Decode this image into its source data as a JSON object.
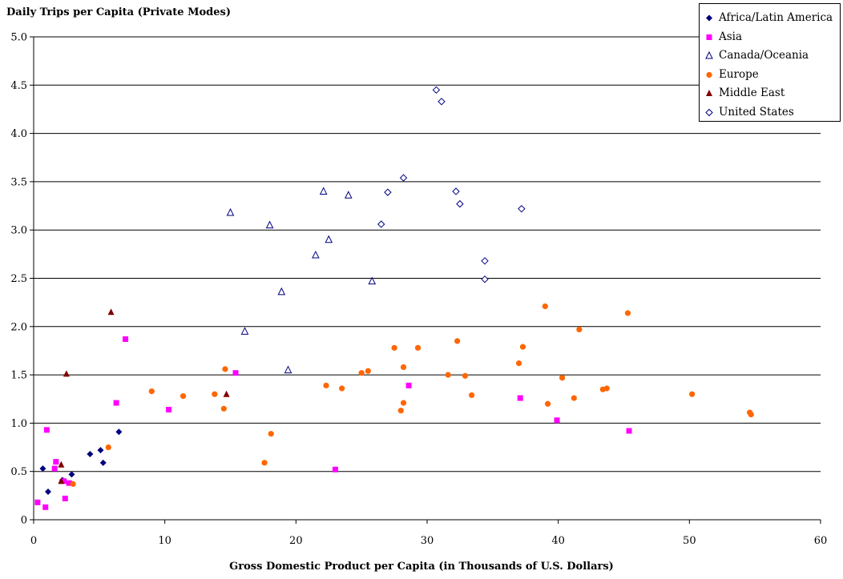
{
  "chart_data": {
    "type": "scatter",
    "ylabel": "Daily Trips per Capita (Private Modes)",
    "xlabel": "Gross Domestic Product per Capita (in Thousands of U.S. Dollars)",
    "xlim": [
      0,
      60
    ],
    "ylim": [
      0,
      5
    ],
    "xticks": [
      0,
      10,
      20,
      30,
      40,
      50,
      60
    ],
    "yticks": [
      "0",
      "0.5",
      "1.0",
      "1.5",
      "2.0",
      "2.5",
      "3.0",
      "3.5",
      "4.0",
      "4.5",
      "5.0"
    ],
    "grid": "horizontal",
    "legend_position": "top-right",
    "series": [
      {
        "name": "Africa/Latin America",
        "marker": "diamond-filled",
        "color": "#000080",
        "x": [
          0.7,
          1.1,
          2.2,
          2.9,
          4.3,
          5.1,
          5.3,
          6.5
        ],
        "y": [
          0.53,
          0.29,
          0.41,
          0.47,
          0.68,
          0.72,
          0.59,
          0.91
        ]
      },
      {
        "name": "Asia",
        "marker": "square",
        "color": "#ff00ff",
        "x": [
          0.3,
          0.9,
          1.0,
          1.6,
          1.7,
          2.3,
          2.4,
          2.7,
          6.3,
          7.0,
          10.3,
          15.4,
          23.0,
          28.6,
          37.1,
          39.9,
          45.4
        ],
        "y": [
          0.18,
          0.13,
          0.93,
          0.53,
          0.6,
          0.4,
          0.22,
          0.38,
          1.21,
          1.87,
          1.14,
          1.52,
          0.52,
          1.39,
          1.26,
          1.03,
          0.92
        ]
      },
      {
        "name": "Canada/Oceania",
        "marker": "triangle-open",
        "color": "#000080",
        "x": [
          15.0,
          16.1,
          18.0,
          18.9,
          19.4,
          21.5,
          22.1,
          22.5,
          24.0,
          25.8
        ],
        "y": [
          3.18,
          1.95,
          3.05,
          2.36,
          1.55,
          2.74,
          3.4,
          2.9,
          3.36,
          2.47
        ]
      },
      {
        "name": "Europe",
        "marker": "circle",
        "color": "#ff6600",
        "x": [
          3.0,
          5.7,
          9.0,
          11.4,
          13.8,
          14.5,
          14.6,
          17.6,
          18.1,
          22.3,
          23.5,
          25.0,
          25.5,
          27.5,
          28.0,
          28.2,
          28.2,
          29.3,
          31.6,
          32.3,
          32.9,
          33.4,
          37.0,
          37.3,
          39.0,
          39.2,
          40.3,
          41.2,
          41.6,
          43.4,
          43.7,
          45.3,
          50.2,
          54.6,
          54.7
        ],
        "y": [
          0.37,
          0.75,
          1.33,
          1.28,
          1.3,
          1.15,
          1.56,
          0.59,
          0.89,
          1.39,
          1.36,
          1.52,
          1.54,
          1.78,
          1.13,
          1.58,
          1.21,
          1.78,
          1.5,
          1.85,
          1.49,
          1.29,
          1.62,
          1.79,
          2.21,
          1.2,
          1.47,
          1.26,
          1.97,
          1.35,
          1.36,
          2.14,
          1.3,
          1.11,
          1.09
        ]
      },
      {
        "name": "Middle East",
        "marker": "triangle-filled",
        "color": "#800000",
        "x": [
          2.1,
          2.1,
          2.5,
          5.9,
          14.7
        ],
        "y": [
          0.57,
          0.4,
          1.51,
          2.15,
          1.3
        ]
      },
      {
        "name": "United States",
        "marker": "diamond-open",
        "color": "#000080",
        "x": [
          26.5,
          27.0,
          28.2,
          30.7,
          31.1,
          32.2,
          32.5,
          34.4,
          34.4,
          37.2
        ],
        "y": [
          3.06,
          3.39,
          3.54,
          4.45,
          4.33,
          3.4,
          3.27,
          2.68,
          2.49,
          3.22
        ]
      }
    ]
  }
}
